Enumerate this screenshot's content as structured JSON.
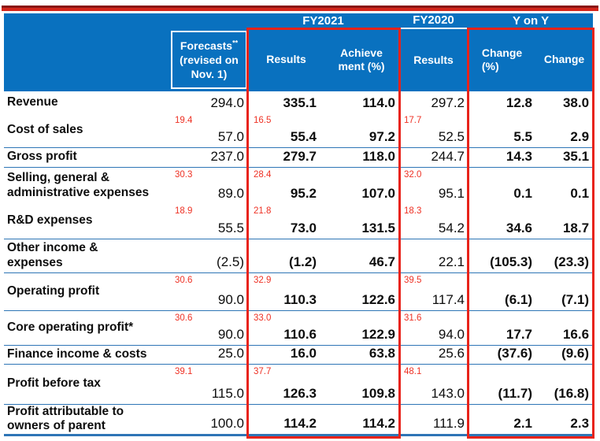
{
  "colors": {
    "header_blue": "#0971bf",
    "separator_blue": "#2e75b6",
    "annotation_red": "#ee3124",
    "highlight_border_red": "#e8231a",
    "top_rule_red": "#d3251b"
  },
  "table": {
    "groups": {
      "fy2021": "FY2021",
      "fy2020": "FY2020",
      "yony": "Y on Y"
    },
    "headers": {
      "forecasts_main": "Forecasts",
      "forecasts_sup": "**",
      "forecasts_sub": "(revised on\nNov. 1)",
      "results_fy2021": "Results",
      "achievement": "Achieve\nment (%)",
      "results_fy2020": "Results",
      "change_pct": "Change\n(%)",
      "change": "Change"
    },
    "rows": [
      {
        "label": "Revenue",
        "forecast": "294.0",
        "result": "335.1",
        "achievement": "114.0",
        "fy2020": "297.2",
        "change_pct": "12.8",
        "change": "38.0"
      },
      {
        "label": "Cost of sales",
        "pct_forecast": "19.4",
        "forecast": "57.0",
        "pct_result": "16.5",
        "result": "55.4",
        "achievement": "97.2",
        "pct_fy2020": "17.7",
        "fy2020": "52.5",
        "change_pct": "5.5",
        "change": "2.9"
      },
      {
        "label": "Gross profit",
        "forecast": "237.0",
        "result": "279.7",
        "achievement": "118.0",
        "fy2020": "244.7",
        "change_pct": "14.3",
        "change": "35.1"
      },
      {
        "label": "Selling, general &\nadministrative expenses",
        "pct_forecast": "30.3",
        "forecast": "89.0",
        "pct_result": "28.4",
        "result": "95.2",
        "achievement": "107.0",
        "pct_fy2020": "32.0",
        "fy2020": "95.1",
        "change_pct": "0.1",
        "change": "0.1"
      },
      {
        "label": "R&D expenses",
        "pct_forecast": "18.9",
        "forecast": "55.5",
        "pct_result": "21.8",
        "result": "73.0",
        "achievement": "131.5",
        "pct_fy2020": "18.3",
        "fy2020": "54.2",
        "change_pct": "34.6",
        "change": "18.7"
      },
      {
        "label": "Other income &\nexpenses",
        "forecast": "(2.5)",
        "result": "(1.2)",
        "achievement": "46.7",
        "fy2020": "22.1",
        "change_pct": "(105.3)",
        "change": "(23.3)"
      },
      {
        "label": "Operating profit",
        "pct_forecast": "30.6",
        "forecast": "90.0",
        "pct_result": "32.9",
        "result": "110.3",
        "achievement": "122.6",
        "pct_fy2020": "39.5",
        "fy2020": "117.4",
        "change_pct": "(6.1)",
        "change": "(7.1)"
      },
      {
        "label": "Core operating profit*",
        "pct_forecast": "30.6",
        "forecast": "90.0",
        "pct_result": "33.0",
        "result": "110.6",
        "achievement": "122.9",
        "pct_fy2020": "31.6",
        "fy2020": "94.0",
        "change_pct": "17.7",
        "change": "16.6"
      },
      {
        "label": "Finance income & costs",
        "forecast": "25.0",
        "result": "16.0",
        "achievement": "63.8",
        "fy2020": "25.6",
        "change_pct": "(37.6)",
        "change": "(9.6)"
      },
      {
        "label": "Profit before tax",
        "pct_forecast": "39.1",
        "forecast": "115.0",
        "pct_result": "37.7",
        "result": "126.3",
        "achievement": "109.8",
        "pct_fy2020": "48.1",
        "fy2020": "143.0",
        "change_pct": "(11.7)",
        "change": "(16.8)"
      },
      {
        "label": "Profit attributable to\nowners of parent",
        "forecast": "100.0",
        "result": "114.2",
        "achievement": "114.2",
        "fy2020": "111.9",
        "change_pct": "2.1",
        "change": "2.3"
      }
    ]
  }
}
